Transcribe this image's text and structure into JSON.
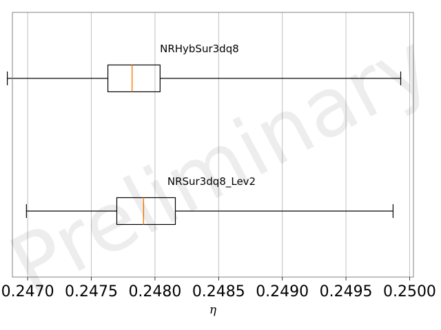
{
  "chart_data": {
    "type": "boxplot",
    "orientation": "horizontal",
    "xlabel": "η",
    "xlim": [
      0.24688,
      0.25003
    ],
    "xticks": [
      0.247,
      0.2475,
      0.248,
      0.2485,
      0.249,
      0.2495,
      0.25
    ],
    "xtick_labels": [
      "0.2470",
      "0.2475",
      "0.2480",
      "0.2485",
      "0.2490",
      "0.2495",
      "0.2500"
    ],
    "grid": "vertical",
    "watermark": "Preliminary",
    "series": [
      {
        "name": "NRHybSur3dq8",
        "whisker_low": 0.24684,
        "q1": 0.24763,
        "median": 0.24782,
        "q3": 0.24804,
        "whisker_high": 0.24993
      },
      {
        "name": "NRSur3dq8_Lev2",
        "whisker_low": 0.24699,
        "q1": 0.2477,
        "median": 0.24791,
        "q3": 0.24816,
        "whisker_high": 0.24987
      }
    ],
    "colors": {
      "box": "#000000",
      "median": "#ff7f0e",
      "grid": "#b0b0b0",
      "frame": "#808080"
    }
  }
}
